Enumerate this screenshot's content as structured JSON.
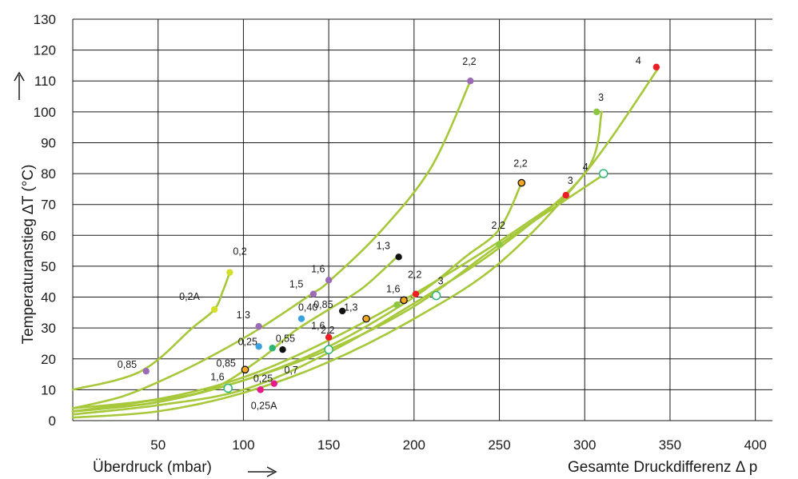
{
  "chart_data": {
    "type": "scatter",
    "xlim": [
      0,
      410
    ],
    "ylim": [
      0,
      130
    ],
    "x_ticks": [
      50,
      100,
      150,
      200,
      250,
      300,
      350,
      400
    ],
    "y_ticks": [
      0,
      10,
      20,
      30,
      40,
      50,
      60,
      70,
      80,
      90,
      100,
      110,
      120,
      130
    ],
    "ylabel": "Temperaturanstieg ∆T (°C)",
    "xlabel_left": "Überdruck (mbar)",
    "xlabel_right": "Gesamte Druckdifferenz  Δ p",
    "grid": true,
    "colors": {
      "curve": "#a6c83a",
      "grid": "#1a1a1a",
      "purple": "#9b6bb5",
      "yellowgreen": "#d4df2a",
      "red": "#ee1c24",
      "orange": "#f5a623",
      "black": "#111111",
      "blue": "#3aa0e0",
      "magenta": "#e6198a",
      "green": "#8dc63f",
      "teal": "#2bb673"
    },
    "curves": [
      [
        [
          0,
          10
        ],
        [
          40,
          16
        ],
        [
          70,
          30
        ],
        [
          83,
          36
        ],
        [
          88,
          42
        ],
        [
          92,
          48
        ]
      ],
      [
        [
          0,
          4
        ],
        [
          30,
          8
        ],
        [
          60,
          15
        ],
        [
          85,
          22
        ],
        [
          110,
          30
        ],
        [
          140,
          41
        ],
        [
          150,
          45
        ],
        [
          180,
          61
        ],
        [
          210,
          82
        ],
        [
          233,
          110
        ]
      ],
      [
        [
          0,
          3
        ],
        [
          40,
          6
        ],
        [
          80,
          10
        ],
        [
          110,
          20
        ],
        [
          130,
          29
        ],
        [
          150,
          36
        ],
        [
          170,
          43
        ],
        [
          190,
          53
        ]
      ],
      [
        [
          0,
          2
        ],
        [
          50,
          5
        ],
        [
          100,
          10
        ],
        [
          150,
          22
        ],
        [
          200,
          38
        ],
        [
          250,
          56
        ],
        [
          300,
          80
        ],
        [
          310,
          100
        ]
      ],
      [
        [
          0,
          3
        ],
        [
          50,
          6
        ],
        [
          100,
          13
        ],
        [
          150,
          24
        ],
        [
          200,
          40
        ],
        [
          230,
          53
        ],
        [
          250,
          62
        ],
        [
          263,
          77
        ]
      ],
      [
        [
          0,
          1
        ],
        [
          50,
          3
        ],
        [
          100,
          9
        ],
        [
          150,
          19
        ],
        [
          200,
          33
        ],
        [
          250,
          51
        ],
        [
          300,
          80
        ],
        [
          343,
          114
        ]
      ],
      [
        [
          0,
          4
        ],
        [
          50,
          7
        ],
        [
          100,
          14
        ],
        [
          150,
          26
        ],
        [
          200,
          41
        ],
        [
          250,
          58
        ],
        [
          290,
          73
        ]
      ],
      [
        [
          0,
          3
        ],
        [
          50,
          6
        ],
        [
          100,
          13
        ],
        [
          150,
          23
        ],
        [
          200,
          37
        ],
        [
          250,
          57
        ],
        [
          312,
          80
        ]
      ]
    ],
    "points": [
      {
        "x": 92,
        "y": 48,
        "label": "0,2",
        "color": "yellowgreen",
        "style": "filled"
      },
      {
        "x": 83,
        "y": 36,
        "label": "0,2A",
        "color": "yellowgreen",
        "style": "filled"
      },
      {
        "x": 43,
        "y": 16,
        "label": "0,85",
        "color": "purple",
        "style": "filled"
      },
      {
        "x": 109,
        "y": 30.5,
        "label": "1,3",
        "color": "purple",
        "style": "filled"
      },
      {
        "x": 141,
        "y": 41,
        "label": "1,5",
        "color": "purple",
        "style": "filled"
      },
      {
        "x": 150,
        "y": 45.5,
        "label": "1,6",
        "color": "purple",
        "style": "filled"
      },
      {
        "x": 233,
        "y": 110,
        "label": "2,2",
        "color": "purple",
        "style": "filled"
      },
      {
        "x": 134,
        "y": 33,
        "label": "0,40",
        "color": "blue",
        "style": "filled"
      },
      {
        "x": 109,
        "y": 24,
        "label": "0,25",
        "color": "blue",
        "style": "filled"
      },
      {
        "x": 117,
        "y": 23.5,
        "label": "0,55",
        "color": "teal",
        "style": "filled"
      },
      {
        "x": 123,
        "y": 23,
        "label": "0,7",
        "color": "black",
        "style": "filled"
      },
      {
        "x": 158,
        "y": 35.5,
        "label": "0,85",
        "color": "black",
        "style": "filled"
      },
      {
        "x": 191,
        "y": 53,
        "label": "1,3",
        "color": "black",
        "style": "filled"
      },
      {
        "x": 101,
        "y": 16.5,
        "label": "0,85",
        "color": "orange",
        "style": "outlined"
      },
      {
        "x": 172,
        "y": 33,
        "label": "1,3",
        "color": "orange",
        "style": "outlined"
      },
      {
        "x": 194,
        "y": 39,
        "label": "1,6",
        "color": "orange",
        "style": "outlined"
      },
      {
        "x": 263,
        "y": 77,
        "label": "2,2",
        "color": "orange",
        "style": "outlined"
      },
      {
        "x": 110,
        "y": 10,
        "label": "0,25A",
        "color": "magenta",
        "style": "filled"
      },
      {
        "x": 118,
        "y": 12,
        "label": "0,25",
        "color": "magenta",
        "style": "filled"
      },
      {
        "x": 91,
        "y": 10.5,
        "label": "1,6",
        "color": "teal",
        "style": "open"
      },
      {
        "x": 150,
        "y": 23,
        "label": "2,2",
        "color": "teal",
        "style": "open"
      },
      {
        "x": 213,
        "y": 40.5,
        "label": "3",
        "color": "teal",
        "style": "open"
      },
      {
        "x": 311,
        "y": 80,
        "label": "4",
        "color": "teal",
        "style": "open"
      },
      {
        "x": 150,
        "y": 27,
        "label": "1,6",
        "color": "red",
        "style": "filled"
      },
      {
        "x": 201,
        "y": 41,
        "label": "2,2",
        "color": "red",
        "style": "filled"
      },
      {
        "x": 289,
        "y": 73,
        "label": "3",
        "color": "red",
        "style": "filled"
      },
      {
        "x": 342,
        "y": 114.5,
        "label": "4",
        "color": "red",
        "style": "filled"
      },
      {
        "x": 190,
        "y": 37.5,
        "label": "",
        "color": "green",
        "style": "filled"
      },
      {
        "x": 250,
        "y": 57,
        "label": "2,2",
        "color": "green",
        "style": "filled"
      },
      {
        "x": 307,
        "y": 100,
        "label": "3",
        "color": "green",
        "style": "filled"
      }
    ]
  }
}
